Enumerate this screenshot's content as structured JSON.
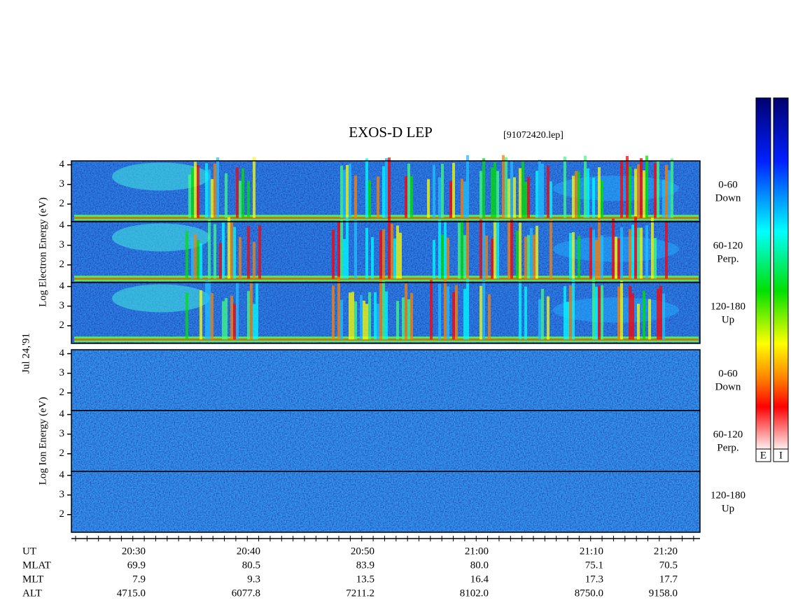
{
  "chart_data": {
    "type": "spectrogram",
    "title": "EXOS-D LEP",
    "file_label": "[91072420.lep]",
    "date_label": "Jul 24,'91",
    "groups": [
      {
        "axis_label": "Log  Electron  Energy (eV)",
        "panels": [
          {
            "pitch": "0-60",
            "direction": "Down"
          },
          {
            "pitch": "60-120",
            "direction": "Perp."
          },
          {
            "pitch": "120-180",
            "direction": "Up"
          }
        ]
      },
      {
        "axis_label": "Log  Ion  Energy (eV)",
        "panels": [
          {
            "pitch": "0-60",
            "direction": "Down"
          },
          {
            "pitch": "60-120",
            "direction": "Perp."
          },
          {
            "pitch": "120-180",
            "direction": "Up"
          }
        ]
      }
    ],
    "ylim": [
      1.1,
      4.2
    ],
    "yticks": [
      2,
      3,
      4
    ],
    "row_labels": [
      "UT",
      "MLAT",
      "MLT",
      "ALT"
    ],
    "columns": [
      [
        "20:30",
        "69.9",
        "7.9",
        "4715.0"
      ],
      [
        "20:40",
        "80.5",
        "9.3",
        "6077.8"
      ],
      [
        "20:50",
        "83.9",
        "13.5",
        "7211.2"
      ],
      [
        "21:00",
        "80.0",
        "16.4",
        "8102.0"
      ],
      [
        "21:10",
        "75.1",
        "17.3",
        "8750.0"
      ],
      [
        "21:20",
        "70.5",
        "17.7",
        "9158.0"
      ]
    ],
    "colorbar_labels": [
      "E",
      "I"
    ]
  }
}
